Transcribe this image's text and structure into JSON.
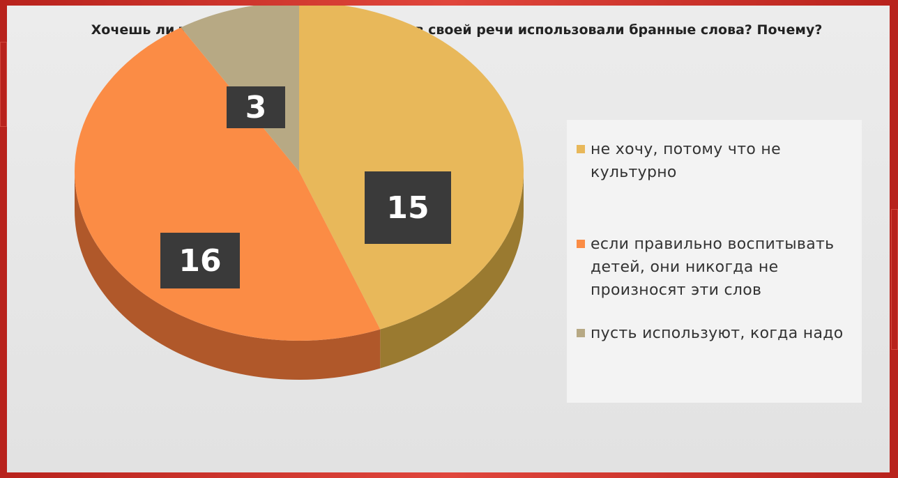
{
  "chart_data": {
    "type": "pie",
    "title": "Хочешь ли ты, чтобы твои будущие дети в своей речи использовали бранные слова? Почему?",
    "slices": [
      {
        "label": "не хочу, потому что не культурно",
        "value": 15,
        "color": "#e8b85a",
        "side": "#9a7a30"
      },
      {
        "label": "если правильно воспитывать детей, они никогда не произносят эти слов",
        "value": 16,
        "color": "#fb8c45",
        "side": "#b0582a"
      },
      {
        "label": "пусть используют, когда надо",
        "value": 3,
        "color": "#b7a984",
        "side": "#7a6c50"
      }
    ],
    "data_labels": true,
    "legend_position": "right",
    "style": "3d"
  }
}
